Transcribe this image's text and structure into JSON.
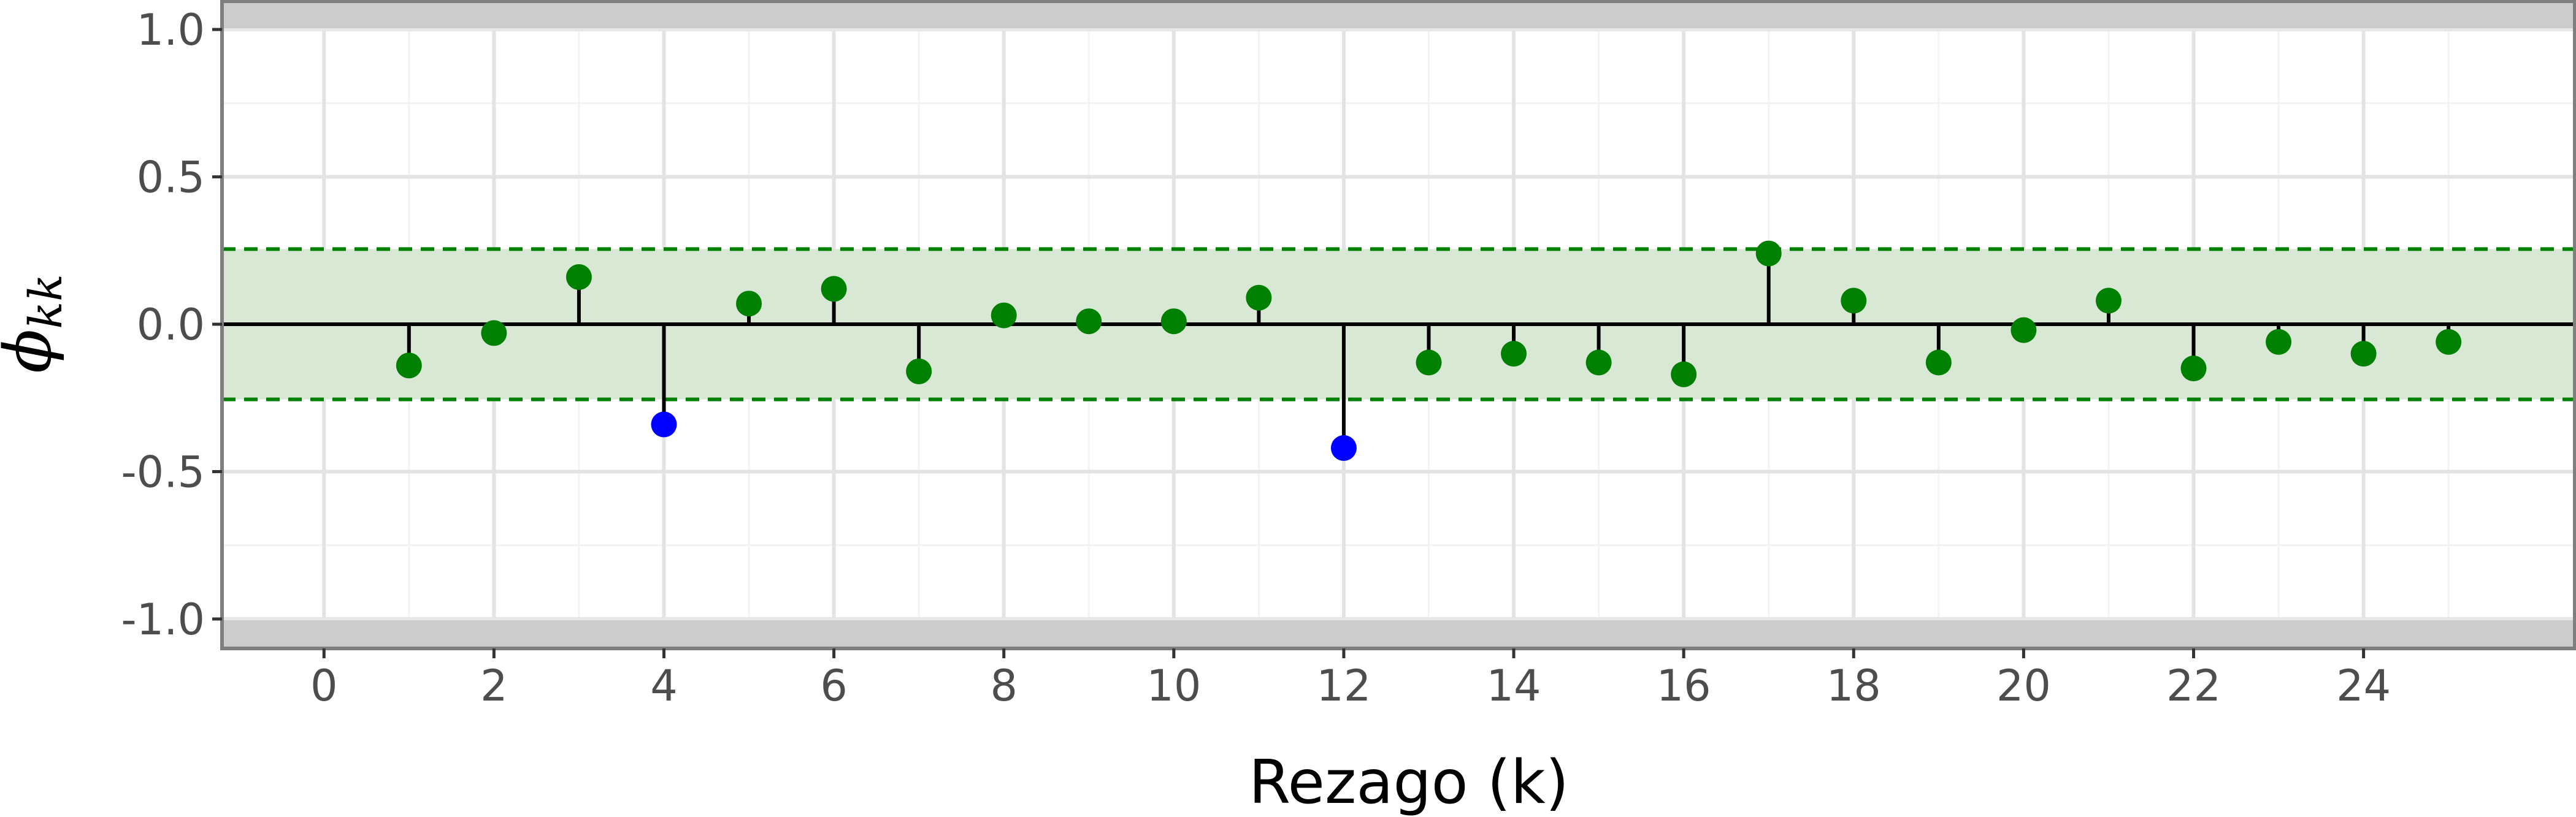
{
  "chart_data": {
    "type": "scatter",
    "subtype": "pacf-stem",
    "xlabel": "Rezago (k)",
    "ylabel": {
      "symbol": "ϕ",
      "subscript": "kk"
    },
    "xlim": [
      -1.2,
      26.5
    ],
    "ylim": [
      -1.1,
      1.1
    ],
    "x_ticks": [
      0,
      2,
      4,
      6,
      8,
      10,
      12,
      14,
      16,
      18,
      20,
      22,
      24
    ],
    "x_tick_labels": [
      "0",
      "2",
      "4",
      "6",
      "8",
      "10",
      "12",
      "14",
      "16",
      "18",
      "20",
      "22",
      "24"
    ],
    "y_ticks": [
      1.0,
      0.5,
      0.0,
      -0.5,
      -1.0
    ],
    "y_tick_labels": [
      "1.0",
      "0.5",
      "0.0",
      "-0.5",
      "-1.0"
    ],
    "grid": true,
    "confidence_band": {
      "lower": -0.255,
      "upper": 0.255
    },
    "out_of_range_bands": {
      "upper": [
        1.0,
        1.1
      ],
      "lower": [
        -1.1,
        -1.0
      ]
    },
    "colors": {
      "within_band": "#008000",
      "outside_band": "#0000ff",
      "band_fill": "#d8e8d4",
      "band_line": "#008000",
      "stem": "#000000",
      "out_of_range_fill": "#cccccc",
      "grid_major": "#e3e3e3",
      "grid_minor": "#f3f3f3",
      "panel_border": "#7f7f7f"
    },
    "points": [
      {
        "k": 1,
        "value": -0.14,
        "significant": false
      },
      {
        "k": 2,
        "value": -0.03,
        "significant": false
      },
      {
        "k": 3,
        "value": 0.16,
        "significant": false
      },
      {
        "k": 4,
        "value": -0.34,
        "significant": true
      },
      {
        "k": 5,
        "value": 0.07,
        "significant": false
      },
      {
        "k": 6,
        "value": 0.12,
        "significant": false
      },
      {
        "k": 7,
        "value": -0.16,
        "significant": false
      },
      {
        "k": 8,
        "value": 0.03,
        "significant": false
      },
      {
        "k": 9,
        "value": 0.01,
        "significant": false
      },
      {
        "k": 10,
        "value": 0.01,
        "significant": false
      },
      {
        "k": 11,
        "value": 0.09,
        "significant": false
      },
      {
        "k": 12,
        "value": -0.42,
        "significant": true
      },
      {
        "k": 13,
        "value": -0.13,
        "significant": false
      },
      {
        "k": 14,
        "value": -0.1,
        "significant": false
      },
      {
        "k": 15,
        "value": -0.13,
        "significant": false
      },
      {
        "k": 16,
        "value": -0.17,
        "significant": false
      },
      {
        "k": 17,
        "value": 0.24,
        "significant": false
      },
      {
        "k": 18,
        "value": 0.08,
        "significant": false
      },
      {
        "k": 19,
        "value": -0.13,
        "significant": false
      },
      {
        "k": 20,
        "value": -0.02,
        "significant": false
      },
      {
        "k": 21,
        "value": 0.08,
        "significant": false
      },
      {
        "k": 22,
        "value": -0.15,
        "significant": false
      },
      {
        "k": 23,
        "value": -0.06,
        "significant": false
      },
      {
        "k": 24,
        "value": -0.1,
        "significant": false
      },
      {
        "k": 25,
        "value": -0.06,
        "significant": false
      }
    ]
  }
}
